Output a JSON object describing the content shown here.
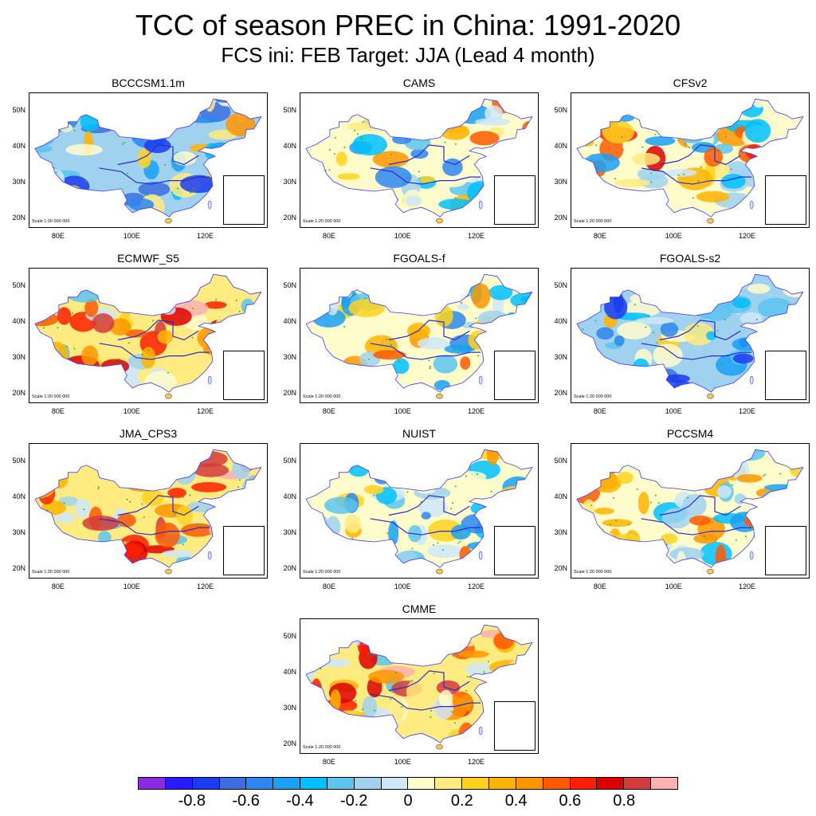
{
  "title": "TCC of season PREC in China: 1991-2020",
  "subtitle": "FCS ini: FEB    Target: JJA (Lead 4 month)",
  "chart_data": {
    "type": "heatmap",
    "title": "TCC of season PREC in China: 1991-2020",
    "subtitle": "FCS ini: FEB    Target: JJA (Lead 4 month)",
    "variable": "Temporal correlation coefficient (TCC) of seasonal precipitation",
    "period": "1991-2020",
    "forecast_init": "FEB",
    "target": "JJA",
    "lead": "4 month",
    "x_ticks": [
      "80E",
      "100E",
      "120E"
    ],
    "y_ticks": [
      "20N",
      "30N",
      "40N",
      "50N"
    ],
    "xlim_deg": [
      72,
      137
    ],
    "ylim_deg": [
      17,
      55
    ],
    "scale_note": "Scale 1:20 000 000",
    "panels": [
      {
        "name": "BCCCSM1.1m",
        "tone": "mixed-blue"
      },
      {
        "name": "CAMS",
        "tone": "mixed"
      },
      {
        "name": "CFSv2",
        "tone": "mixed-warm"
      },
      {
        "name": "ECMWF_S5",
        "tone": "warm"
      },
      {
        "name": "FGOALS-f",
        "tone": "mixed"
      },
      {
        "name": "FGOALS-s2",
        "tone": "mixed-blue"
      },
      {
        "name": "JMA_CPS3",
        "tone": "warm"
      },
      {
        "name": "NUIST",
        "tone": "mixed"
      },
      {
        "name": "PCCSM4",
        "tone": "mixed"
      },
      {
        "name": "CMME",
        "tone": "warm"
      }
    ],
    "colorbar": {
      "levels": [
        -0.9,
        -0.8,
        -0.7,
        -0.6,
        -0.5,
        -0.4,
        -0.3,
        -0.2,
        -0.1,
        0,
        0.1,
        0.2,
        0.3,
        0.4,
        0.5,
        0.6,
        0.7,
        0.8,
        0.9
      ],
      "tick_labels": [
        "-0.8",
        "-0.6",
        "-0.4",
        "-0.2",
        "0",
        "0.2",
        "0.4",
        "0.6",
        "0.8"
      ],
      "colors": [
        "#8a2be2",
        "#2b1aff",
        "#1a3cf0",
        "#3c6ee0",
        "#2e86f0",
        "#1aa0f5",
        "#00bfff",
        "#5cc4ef",
        "#a0d2f0",
        "#cfe8f7",
        "#fffccc",
        "#ffeb80",
        "#ffd21f",
        "#ffb400",
        "#ff9600",
        "#ff5a00",
        "#ff1e00",
        "#dc0000",
        "#d23c3c",
        "#ffb0b0"
      ]
    },
    "significance_marker": "green dots"
  }
}
